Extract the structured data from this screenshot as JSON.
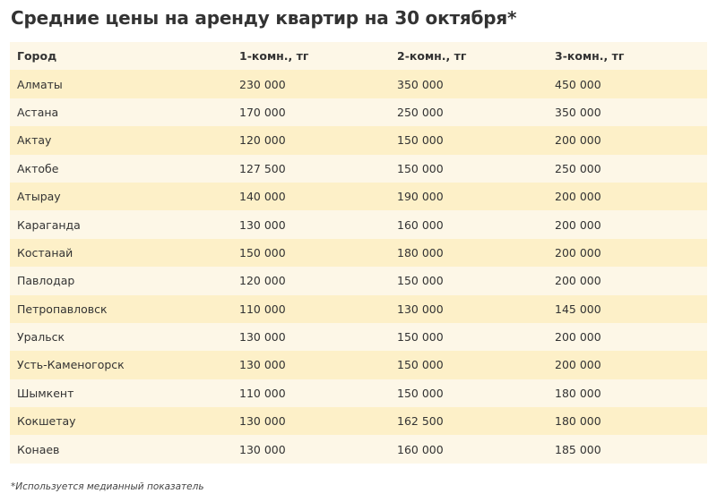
{
  "title": "Средние цены на аренду квартир на 30 октября*",
  "table": {
    "headers": [
      "Город",
      "1-комн., тг",
      "2-комн., тг",
      "3-комн., тг"
    ],
    "rows": [
      [
        "Алматы",
        "230 000",
        "350 000",
        "450 000"
      ],
      [
        "Астана",
        "170 000",
        "250 000",
        "350 000"
      ],
      [
        "Актау",
        "120 000",
        "150 000",
        "200 000"
      ],
      [
        "Актобе",
        "127 500",
        "150 000",
        "250 000"
      ],
      [
        "Атырау",
        "140 000",
        "190 000",
        "200 000"
      ],
      [
        "Караганда",
        "130 000",
        "160 000",
        "200 000"
      ],
      [
        "Костанай",
        "150 000",
        "180 000",
        "200 000"
      ],
      [
        "Павлодар",
        "120 000",
        "150 000",
        "200 000"
      ],
      [
        "Петропавловск",
        "110 000",
        "130 000",
        "145 000"
      ],
      [
        "Уральск",
        "130 000",
        "150 000",
        "200 000"
      ],
      [
        "Усть-Каменогорск",
        "130 000",
        "150 000",
        "200 000"
      ],
      [
        "Шымкент",
        "110 000",
        "150 000",
        "180 000"
      ],
      [
        "Кокшетау",
        "130 000",
        "162 500",
        "180 000"
      ],
      [
        "Конаев",
        "130 000",
        "160 000",
        "185 000"
      ]
    ]
  },
  "footnote": "*Используется медианный показатель",
  "colors": {
    "row_odd": "#fdf0c8",
    "row_even": "#fdf7e7",
    "text": "#333333"
  }
}
